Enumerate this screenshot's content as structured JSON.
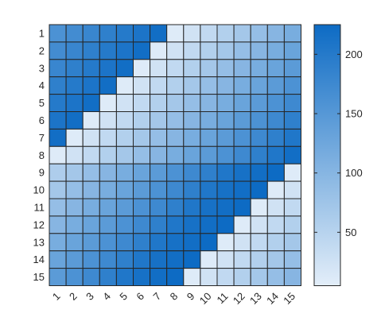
{
  "chart_data": {
    "type": "heatmap",
    "title": "",
    "xlabel": "",
    "ylabel": "",
    "x_categories": [
      "1",
      "2",
      "3",
      "4",
      "5",
      "6",
      "7",
      "8",
      "9",
      "10",
      "11",
      "12",
      "13",
      "14",
      "15"
    ],
    "y_categories": [
      "1",
      "2",
      "3",
      "4",
      "5",
      "6",
      "7",
      "8",
      "9",
      "10",
      "11",
      "12",
      "13",
      "14",
      "15"
    ],
    "values": [
      [
        160,
        170,
        180,
        190,
        200,
        210,
        220,
        10,
        25,
        40,
        55,
        70,
        85,
        100,
        115
      ],
      [
        170,
        180,
        190,
        200,
        210,
        220,
        10,
        25,
        40,
        55,
        70,
        85,
        100,
        115,
        130
      ],
      [
        180,
        190,
        200,
        210,
        220,
        10,
        25,
        40,
        55,
        70,
        85,
        100,
        115,
        130,
        145
      ],
      [
        190,
        200,
        210,
        220,
        10,
        25,
        40,
        55,
        70,
        85,
        100,
        115,
        130,
        145,
        160
      ],
      [
        200,
        210,
        220,
        10,
        25,
        40,
        55,
        70,
        85,
        100,
        115,
        130,
        145,
        160,
        175
      ],
      [
        210,
        220,
        10,
        25,
        40,
        55,
        70,
        85,
        100,
        115,
        130,
        145,
        160,
        175,
        190
      ],
      [
        220,
        10,
        25,
        40,
        55,
        70,
        85,
        100,
        115,
        130,
        145,
        160,
        175,
        190,
        205
      ],
      [
        10,
        25,
        40,
        55,
        70,
        85,
        100,
        115,
        130,
        145,
        160,
        175,
        190,
        205,
        220
      ],
      [
        60,
        70,
        85,
        100,
        115,
        130,
        145,
        160,
        175,
        190,
        205,
        215,
        220,
        225,
        10
      ],
      [
        70,
        85,
        100,
        115,
        130,
        145,
        160,
        175,
        190,
        205,
        215,
        220,
        225,
        10,
        25
      ],
      [
        85,
        100,
        115,
        130,
        145,
        160,
        175,
        190,
        205,
        215,
        220,
        225,
        10,
        25,
        40
      ],
      [
        100,
        115,
        130,
        145,
        160,
        175,
        190,
        205,
        215,
        220,
        225,
        10,
        25,
        40,
        55
      ],
      [
        115,
        130,
        145,
        160,
        175,
        190,
        205,
        215,
        220,
        225,
        10,
        25,
        40,
        55,
        70
      ],
      [
        130,
        145,
        160,
        175,
        190,
        205,
        215,
        220,
        225,
        10,
        25,
        40,
        55,
        70,
        85
      ],
      [
        145,
        160,
        175,
        190,
        205,
        215,
        220,
        225,
        10,
        25,
        40,
        55,
        70,
        85,
        100
      ]
    ],
    "colorbar": {
      "min": 5,
      "max": 225,
      "ticks": [
        50,
        100,
        150,
        200
      ],
      "tick_labels": [
        "50",
        "100",
        "150",
        "200"
      ],
      "color_low": "#e3eef9",
      "color_high": "#0d6bc4"
    },
    "grid": true,
    "legend": "colorbar-right"
  }
}
